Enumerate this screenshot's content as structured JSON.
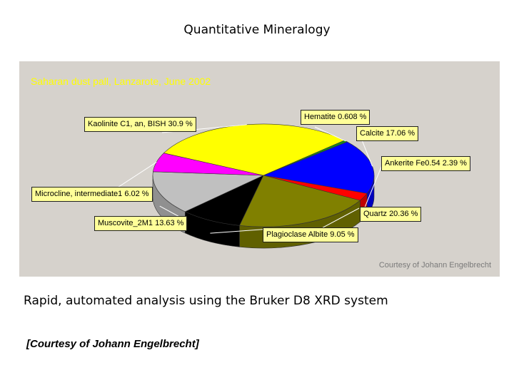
{
  "slide": {
    "title": "Quantitative Mineralogy",
    "caption": "Rapid, automated analysis using the Bruker D8 XRD system",
    "credit": "[Courtesy of Johann Engelbrecht]"
  },
  "chart_data": {
    "type": "pie",
    "title": "Saharan dust pall, Lanzarote, June 2002",
    "credit": "Courtesy of Johann Engelbrecht",
    "three_d": true,
    "slices": [
      {
        "label": "Hematite 0.608 %",
        "value": 0.608,
        "color": "#1a8a1a"
      },
      {
        "label": "Calcite 17.06 %",
        "value": 17.06,
        "color": "#0000ff"
      },
      {
        "label": "Ankerite Fe0.54 2.39 %",
        "value": 2.39,
        "color": "#ff0000"
      },
      {
        "label": "Quartz 20.36 %",
        "value": 20.36,
        "color": "#808000"
      },
      {
        "label": "Plagioclase Albite 9.05 %",
        "value": 9.05,
        "color": "#000000"
      },
      {
        "label": "Muscovite_2M1 13.63 %",
        "value": 13.63,
        "color": "#c0c0c0"
      },
      {
        "label": "Microcline, intermediate1 6.02 %",
        "value": 6.02,
        "color": "#ff00ff"
      },
      {
        "label": "Kaolinite C1, an, BISH 30.9 %",
        "value": 30.9,
        "color": "#ffff00"
      }
    ],
    "label_box_color": "#ffff99",
    "background": "#d6d2cc",
    "title_color": "#ffff00"
  }
}
